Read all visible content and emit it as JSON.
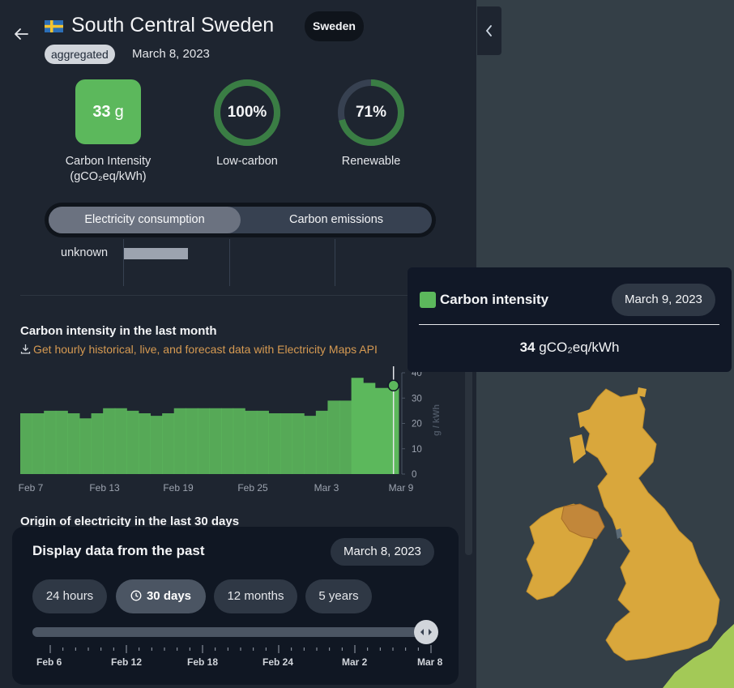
{
  "header": {
    "title": "South Central Sweden",
    "country": "Sweden",
    "mode_badge": "aggregated",
    "date": "March 8, 2023"
  },
  "metrics": {
    "carbon_intensity": {
      "value": "33",
      "unit": "g",
      "label_line1": "Carbon Intensity",
      "label_line2": "(gCO₂eq/kWh)"
    },
    "low_carbon": {
      "value": "100%",
      "fraction": 1.0,
      "label": "Low-carbon"
    },
    "renewable": {
      "value": "71%",
      "fraction": 0.71,
      "label": "Renewable"
    }
  },
  "toggle": {
    "active": "Electricity consumption",
    "inactive": "Carbon emissions"
  },
  "breakdown": {
    "unknown_label": "unknown"
  },
  "carbon_section": {
    "title": "Carbon intensity in the last month",
    "api_link": "Get hourly historical, live, and forecast data with Electricity Maps API"
  },
  "origin_section": {
    "title": "Origin of electricity in the last 30 days"
  },
  "chart_data": {
    "type": "bar",
    "ylabel": "g / kWh",
    "ylim": [
      0,
      40
    ],
    "yticks": [
      "0",
      "10",
      "20",
      "30",
      "40"
    ],
    "xtick_labels": [
      "Feb 7",
      "Feb 13",
      "Feb 19",
      "Feb 25",
      "Mar 3",
      "Mar 9"
    ],
    "values": [
      24,
      24,
      25,
      25,
      24,
      22,
      24,
      26,
      26,
      25,
      24,
      23,
      24,
      26,
      26,
      26,
      26,
      26,
      26,
      25,
      25,
      24,
      24,
      24,
      23,
      25,
      29,
      29,
      38,
      36,
      34,
      34
    ],
    "highlight_value": 34,
    "color": "#5cb85c"
  },
  "time_controller": {
    "title": "Display data from the past",
    "date": "March 8, 2023",
    "options": [
      "24 hours",
      "30 days",
      "12 months",
      "5 years"
    ],
    "active_option": "30 days",
    "tick_labels": [
      "Feb 6",
      "Feb 12",
      "Feb 18",
      "Feb 24",
      "Mar 2",
      "Mar 8"
    ],
    "slider_position": 1.0
  },
  "tooltip": {
    "title": "Carbon intensity",
    "date": "March 9, 2023",
    "value": "34",
    "unit": "gCO₂eq/kWh"
  },
  "colors": {
    "accent_green": "#5cb85c",
    "map_land": "#d9a73c",
    "map_sea": "#343f47"
  }
}
